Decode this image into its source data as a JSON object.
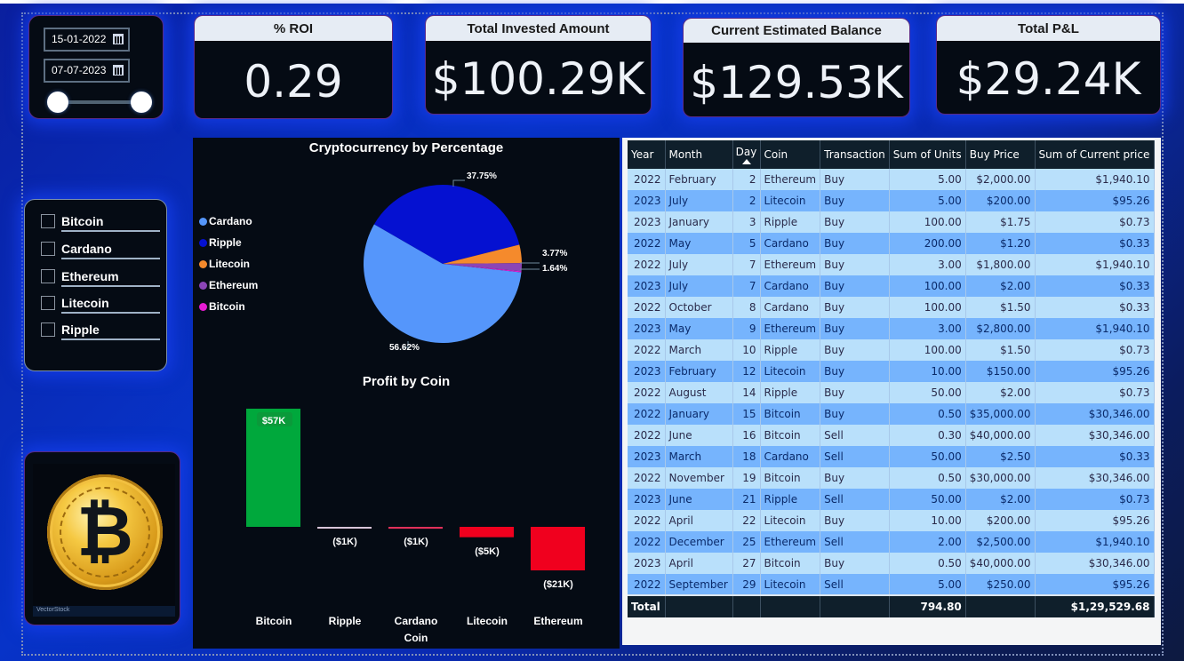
{
  "date_filter": {
    "start_date": "15-01-2022",
    "end_date": "07-07-2023",
    "range_fraction": [
      0,
      1
    ]
  },
  "kpis": [
    {
      "title": "% ROI",
      "value": "0.29"
    },
    {
      "title": "Total Invested Amount",
      "value": "$100.29K"
    },
    {
      "title": "Current Estimated Balance",
      "value": "$129.53K"
    },
    {
      "title": "Total P&L",
      "value": "$29.24K"
    }
  ],
  "coin_slicer": {
    "items": [
      {
        "label": "Bitcoin",
        "checked": false
      },
      {
        "label": "Cardano",
        "checked": false
      },
      {
        "label": "Ethereum",
        "checked": false
      },
      {
        "label": "Litecoin",
        "checked": false
      },
      {
        "label": "Ripple",
        "checked": false
      }
    ]
  },
  "coin_image": {
    "icon": "bitcoin-coin-icon",
    "watermark": "VectorStock"
  },
  "colors": {
    "cardano": "#5596fb",
    "ripple": "#0511d1",
    "litecoin": "#f58a2c",
    "ethereum": "#8b45b6",
    "bitcoin": "#e61bd3",
    "profit": "#00a83c",
    "loss": "#f0001e"
  },
  "chart_data": [
    {
      "type": "pie",
      "title": "Cryptocurrency by Percentage",
      "legend_position": "left",
      "categories": [
        "Cardano",
        "Ripple",
        "Litecoin",
        "Ethereum",
        "Bitcoin"
      ],
      "values": [
        56.62,
        37.75,
        3.77,
        1.64,
        0.22
      ],
      "data_labels": [
        "56.62%",
        "37.75%",
        "3.77%",
        "1.64%",
        ""
      ]
    },
    {
      "type": "bar",
      "title": "Profit by Coin",
      "xlabel": "Coin",
      "ylabel": "",
      "categories": [
        "Bitcoin",
        "Ripple",
        "Cardano",
        "Litecoin",
        "Ethereum"
      ],
      "values": [
        57,
        -0.6,
        -0.9,
        -5,
        -21
      ],
      "data_labels": [
        "$57K",
        "($1K)",
        "($1K)",
        "($5K)",
        "($21K)"
      ],
      "units": "thousands USD"
    }
  ],
  "transactions_table": {
    "columns": [
      "Year",
      "Month",
      "Day",
      "Coin",
      "Transaction",
      "Sum of Units",
      "Buy Price",
      "Sum of Current price"
    ],
    "sorted_by": "Day",
    "rows": [
      [
        "2022",
        "February",
        "2",
        "Ethereum",
        "Buy",
        "5.00",
        "$2,000.00",
        "$1,940.10"
      ],
      [
        "2023",
        "July",
        "2",
        "Litecoin",
        "Buy",
        "5.00",
        "$200.00",
        "$95.26"
      ],
      [
        "2023",
        "January",
        "3",
        "Ripple",
        "Buy",
        "100.00",
        "$1.75",
        "$0.73"
      ],
      [
        "2022",
        "May",
        "5",
        "Cardano",
        "Buy",
        "200.00",
        "$1.20",
        "$0.33"
      ],
      [
        "2022",
        "July",
        "7",
        "Ethereum",
        "Buy",
        "3.00",
        "$1,800.00",
        "$1,940.10"
      ],
      [
        "2023",
        "July",
        "7",
        "Cardano",
        "Buy",
        "100.00",
        "$2.00",
        "$0.33"
      ],
      [
        "2022",
        "October",
        "8",
        "Cardano",
        "Buy",
        "100.00",
        "$1.50",
        "$0.33"
      ],
      [
        "2023",
        "May",
        "9",
        "Ethereum",
        "Buy",
        "3.00",
        "$2,800.00",
        "$1,940.10"
      ],
      [
        "2022",
        "March",
        "10",
        "Ripple",
        "Buy",
        "100.00",
        "$1.50",
        "$0.73"
      ],
      [
        "2023",
        "February",
        "12",
        "Litecoin",
        "Buy",
        "10.00",
        "$150.00",
        "$95.26"
      ],
      [
        "2022",
        "August",
        "14",
        "Ripple",
        "Buy",
        "50.00",
        "$2.00",
        "$0.73"
      ],
      [
        "2022",
        "January",
        "15",
        "Bitcoin",
        "Buy",
        "0.50",
        "$35,000.00",
        "$30,346.00"
      ],
      [
        "2022",
        "June",
        "16",
        "Bitcoin",
        "Sell",
        "0.30",
        "$40,000.00",
        "$30,346.00"
      ],
      [
        "2023",
        "March",
        "18",
        "Cardano",
        "Sell",
        "50.00",
        "$2.50",
        "$0.33"
      ],
      [
        "2022",
        "November",
        "19",
        "Bitcoin",
        "Buy",
        "0.50",
        "$30,000.00",
        "$30,346.00"
      ],
      [
        "2023",
        "June",
        "21",
        "Ripple",
        "Sell",
        "50.00",
        "$2.00",
        "$0.73"
      ],
      [
        "2022",
        "April",
        "22",
        "Litecoin",
        "Buy",
        "10.00",
        "$200.00",
        "$95.26"
      ],
      [
        "2022",
        "December",
        "25",
        "Ethereum",
        "Sell",
        "2.00",
        "$2,500.00",
        "$1,940.10"
      ],
      [
        "2023",
        "April",
        "27",
        "Bitcoin",
        "Buy",
        "0.50",
        "$40,000.00",
        "$30,346.00"
      ],
      [
        "2022",
        "September",
        "29",
        "Litecoin",
        "Sell",
        "5.00",
        "$250.00",
        "$95.26"
      ]
    ],
    "total": {
      "label": "Total",
      "sum_of_units": "794.80",
      "sum_of_current_price": "$1,29,529.68"
    }
  }
}
